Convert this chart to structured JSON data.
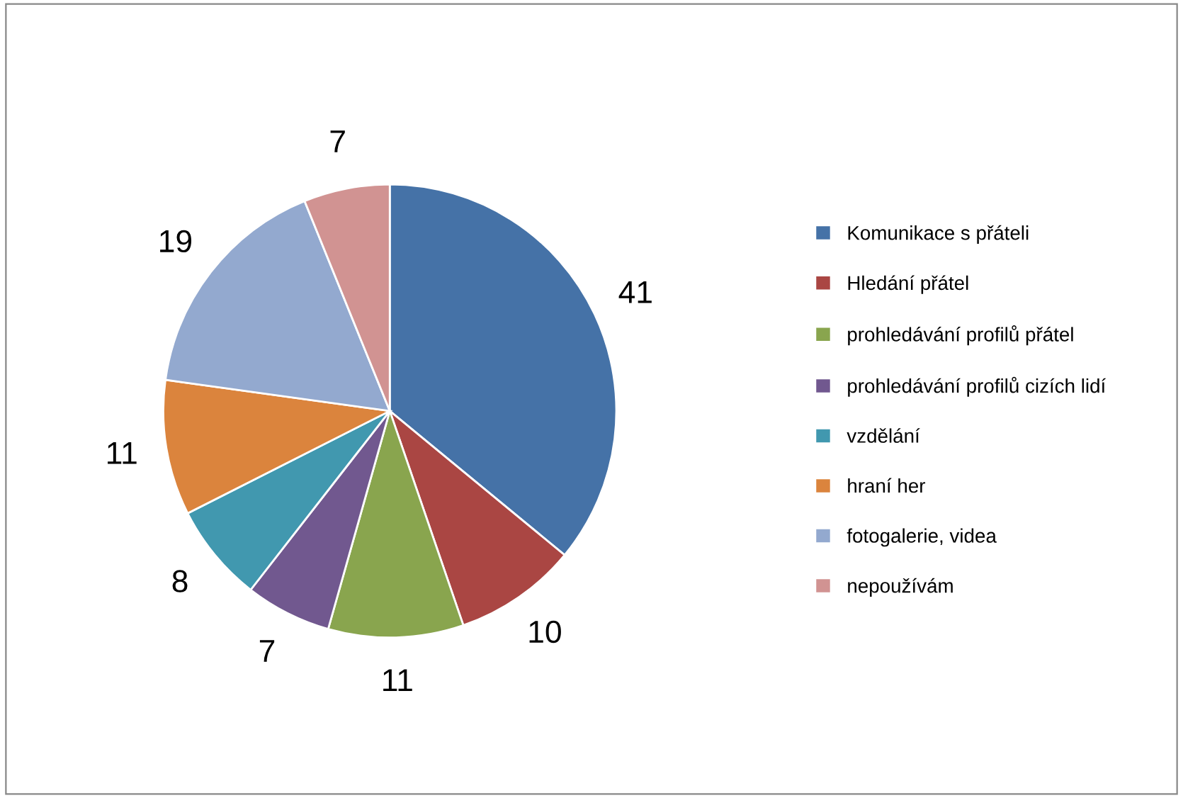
{
  "chart_data": {
    "type": "pie",
    "categories": [
      "Komunikace s přáteli",
      "Hledání přátel",
      "prohledávání profilů přátel",
      "prohledávání profilů cizích lidí",
      "vzdělání",
      "hraní her",
      "fotogalerie, videa",
      "nepoužívám"
    ],
    "values": [
      41,
      10,
      11,
      7,
      8,
      11,
      19,
      7
    ],
    "colors": [
      "#4572a7",
      "#aa4643",
      "#89a54e",
      "#71588f",
      "#4198af",
      "#db843d",
      "#93a9cf",
      "#d19392"
    ],
    "data_labels": true,
    "legend": "right"
  }
}
